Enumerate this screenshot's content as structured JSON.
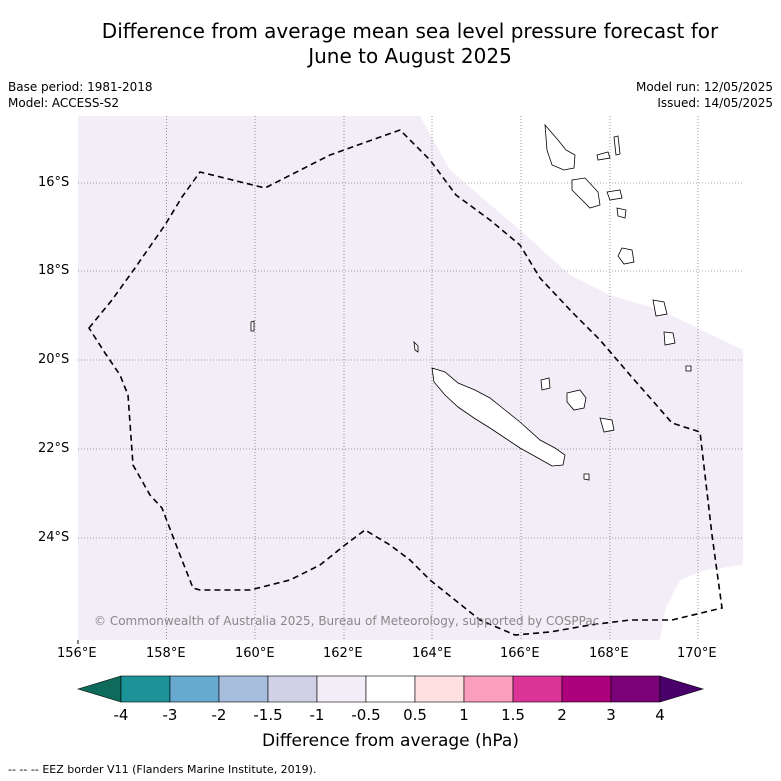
{
  "title_line1": "Difference from average mean sea level pressure forecast for",
  "title_line2": "June to August 2025",
  "base_period": "Base period: 1981-2018",
  "model": "Model: ACCESS-S2",
  "model_run": "Model run: 12/05/2025",
  "issued": "Issued: 14/05/2025",
  "lat_labels": [
    "16°S",
    "18°S",
    "20°S",
    "22°S",
    "24°S"
  ],
  "lon_labels": [
    "156°E",
    "158°E",
    "160°E",
    "162°E",
    "164°E",
    "166°E",
    "168°E",
    "170°E"
  ],
  "copyright": "© Commonwealth of Australia 2025, Bureau of Meteorology, supported by COSPPac",
  "colorbar": {
    "title": "Difference from average (hPa)",
    "ticks": [
      "-4",
      "-3",
      "-2",
      "-1.5",
      "-1",
      "-0.5",
      "0.5",
      "1",
      "1.5",
      "2",
      "3",
      "4"
    ],
    "colors": {
      "below": "#0e6a5b",
      "bins": [
        "#1c9399",
        "#67a9cf",
        "#a6bddb",
        "#d0d1e6",
        "#f2edf6",
        "#ffffff",
        "#ffe0e0",
        "#f99fbd",
        "#dd3497",
        "#ae017e",
        "#7a0177"
      ],
      "above": "#49006a"
    }
  },
  "map": {
    "region_fill": "#f2edf6",
    "legend_item": "EEZ border V11 (Flanders Marine Institute, 2019).",
    "legend_symbol": "--  --  --"
  }
}
